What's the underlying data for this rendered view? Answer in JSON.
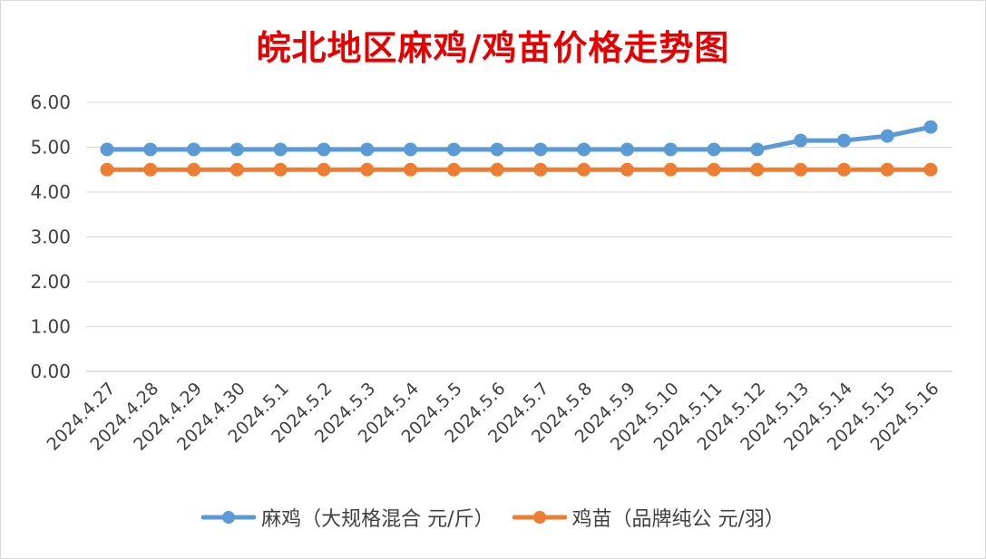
{
  "chart_data": {
    "type": "line",
    "title": "皖北地区麻鸡/鸡苗价格走势图",
    "categories": [
      "2024.4.27",
      "2024.4.28",
      "2024.4.29",
      "2024.4.30",
      "2024.5.1",
      "2024.5.2",
      "2024.5.3",
      "2024.5.4",
      "2024.5.5",
      "2024.5.6",
      "2024.5.7",
      "2024.5.8",
      "2024.5.9",
      "2024.5.10",
      "2024.5.11",
      "2024.5.12",
      "2024.5.13",
      "2024.5.14",
      "2024.5.15",
      "2024.5.16"
    ],
    "series": [
      {
        "name": "麻鸡（大规格混合 元/斤）",
        "color": "#5b9bd5",
        "values": [
          4.95,
          4.95,
          4.95,
          4.95,
          4.95,
          4.95,
          4.95,
          4.95,
          4.95,
          4.95,
          4.95,
          4.95,
          4.95,
          4.95,
          4.95,
          4.95,
          5.15,
          5.15,
          5.25,
          5.45
        ]
      },
      {
        "name": "鸡苗（品牌纯公 元/羽）",
        "color": "#ed7d31",
        "values": [
          4.5,
          4.5,
          4.5,
          4.5,
          4.5,
          4.5,
          4.5,
          4.5,
          4.5,
          4.5,
          4.5,
          4.5,
          4.5,
          4.5,
          4.5,
          4.5,
          4.5,
          4.5,
          4.5,
          4.5
        ]
      }
    ],
    "y_ticks": [
      "0.00",
      "1.00",
      "2.00",
      "3.00",
      "4.00",
      "5.00",
      "6.00"
    ],
    "ylim": [
      0,
      6
    ],
    "grid": true,
    "legend_position": "bottom"
  }
}
